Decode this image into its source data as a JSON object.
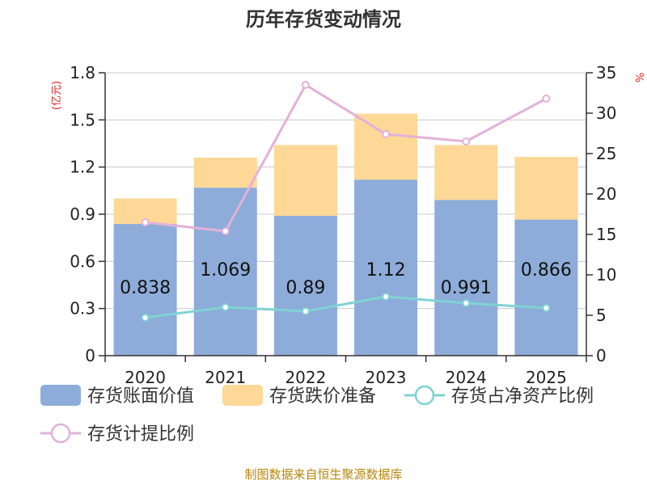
{
  "chart_data": {
    "type": "bar+line",
    "title": "历年存货变动情况",
    "categories": [
      "2020",
      "2021",
      "2022",
      "2023",
      "2024",
      "2025"
    ],
    "bar_series": [
      {
        "name": "存货账面价值",
        "values": [
          0.838,
          1.069,
          0.89,
          1.12,
          0.991,
          0.866
        ],
        "color": "#8dacd9"
      },
      {
        "name": "存货跌价准备",
        "values": [
          0.162,
          0.191,
          0.45,
          0.42,
          0.349,
          0.399
        ],
        "color": "#fdd896"
      }
    ],
    "bar_labels": [
      "0.838",
      "1.069",
      "0.89",
      "1.12",
      "0.991",
      "0.866"
    ],
    "line_series": [
      {
        "name": "存货占净资产比例",
        "values": [
          4.7,
          6.0,
          5.5,
          7.3,
          6.5,
          5.9
        ],
        "color": "#7fd3d3"
      },
      {
        "name": "存货计提比例",
        "values": [
          16.5,
          15.4,
          33.5,
          27.4,
          26.5,
          31.8
        ],
        "color": "#e3b1d9"
      }
    ],
    "y_left": {
      "unit": "(亿元)",
      "min": 0,
      "max": 1.8,
      "ticks": [
        "0",
        "0.3",
        "0.6",
        "0.9",
        "1.2",
        "1.5",
        "1.8"
      ]
    },
    "y_right": {
      "min": 0,
      "max": 35,
      "ticks": [
        "0",
        "5",
        "10",
        "15",
        "20",
        "25",
        "30",
        "35"
      ],
      "unit_mark": "%"
    },
    "source": "制图数据来自恒生聚源数据库"
  }
}
